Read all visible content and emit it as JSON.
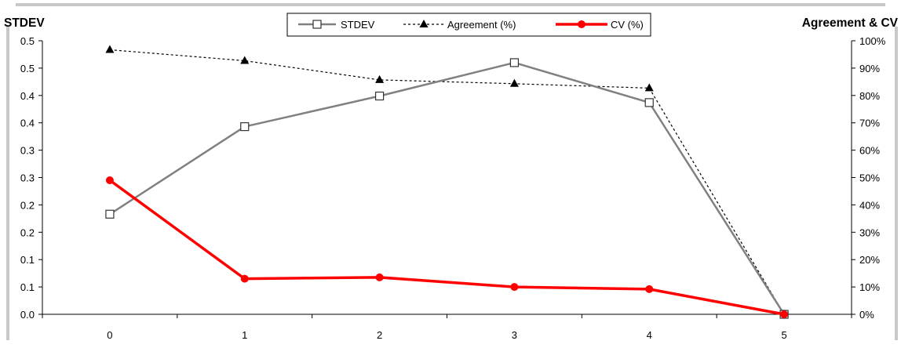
{
  "colors": {
    "stdev": "#808080",
    "agreement": "#000000",
    "cv": "#ff0000",
    "frame": "#c8c8c8"
  },
  "chart_data": {
    "type": "line",
    "y_axis_left": {
      "title": "STDEV",
      "range": [
        0,
        0.5
      ],
      "step": 0.05,
      "tick_labels": [
        "0.0",
        "0.1",
        "0.1",
        "0.2",
        "0.2",
        "0.3",
        "0.3",
        "0.4",
        "0.4",
        "0.5",
        "0.5"
      ]
    },
    "y_axis_right": {
      "title": "Agreement & CV",
      "range": [
        0,
        100
      ],
      "unit": "%",
      "tick_labels": [
        "0%",
        "10%",
        "20%",
        "30%",
        "40%",
        "50%",
        "60%",
        "70%",
        "80%",
        "90%",
        "100%"
      ]
    },
    "categories": [
      "0",
      "1",
      "2",
      "3",
      "4",
      "5"
    ],
    "series": [
      {
        "name": "STDEV",
        "axis": "left",
        "marker": "open-square",
        "style": "solid",
        "values": [
          0.183,
          0.343,
          0.399,
          0.46,
          0.387,
          0.0
        ]
      },
      {
        "name": "Agreement (%)",
        "axis": "right",
        "marker": "triangle",
        "style": "dotted",
        "values": [
          96.7,
          92.7,
          85.7,
          84.3,
          82.7,
          0.0
        ]
      },
      {
        "name": "CV (%)",
        "axis": "right",
        "marker": "circle",
        "style": "solid-thick",
        "values": [
          49.0,
          13.0,
          13.5,
          10.0,
          9.2,
          0.0
        ]
      }
    ],
    "legend": {
      "position": "top-center"
    },
    "grid": false
  }
}
